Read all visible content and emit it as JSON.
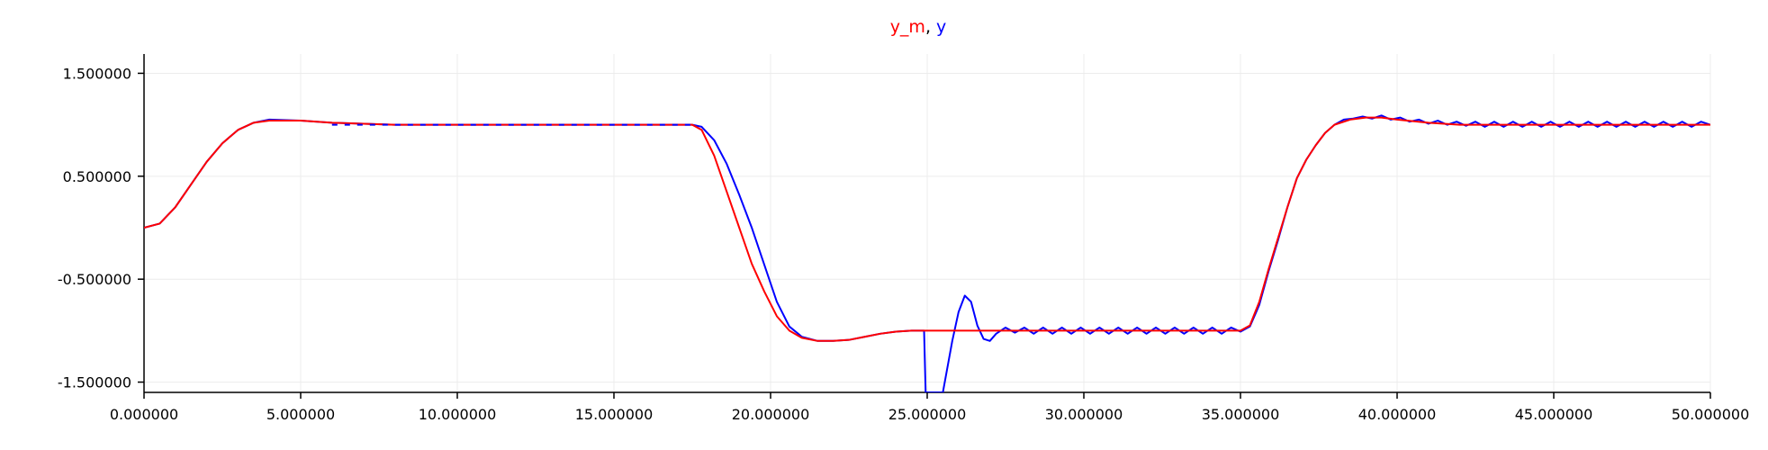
{
  "chart_data": {
    "type": "line",
    "title_parts": [
      {
        "text": "y_m",
        "color": "#ff0000"
      },
      {
        "text": ", ",
        "color": "#000000"
      },
      {
        "text": "y",
        "color": "#0000ff"
      }
    ],
    "xlim": [
      0,
      50
    ],
    "ylim": [
      -1.6,
      1.6
    ],
    "x_ticks": [
      0,
      5,
      10,
      15,
      20,
      25,
      30,
      35,
      40,
      45,
      50
    ],
    "x_tick_labels": [
      "0.000000",
      "5.000000",
      "10.000000",
      "15.000000",
      "20.000000",
      "25.000000",
      "30.000000",
      "35.000000",
      "40.000000",
      "45.000000",
      "50.000000"
    ],
    "y_ticks": [
      1.5,
      0.5,
      -0.5,
      -1.5
    ],
    "y_tick_labels": [
      "1.500000",
      "0.500000",
      "-0.500000",
      "-1.500000"
    ],
    "grid": true,
    "series": [
      {
        "name": "y",
        "color": "#0000ff",
        "points": [
          [
            0,
            0
          ],
          [
            0.5,
            0.04
          ],
          [
            1,
            0.2
          ],
          [
            1.5,
            0.42
          ],
          [
            2,
            0.64
          ],
          [
            2.5,
            0.82
          ],
          [
            3,
            0.95
          ],
          [
            3.5,
            1.02
          ],
          [
            4,
            1.05
          ],
          [
            5,
            1.04
          ],
          [
            6,
            1.02
          ],
          [
            8,
            1.0
          ],
          [
            10,
            1.0
          ],
          [
            12,
            1.0
          ],
          [
            15,
            1.0
          ],
          [
            17.5,
            1.0
          ],
          [
            17.8,
            0.98
          ],
          [
            18.2,
            0.85
          ],
          [
            18.6,
            0.62
          ],
          [
            19.0,
            0.32
          ],
          [
            19.4,
            0.0
          ],
          [
            19.8,
            -0.36
          ],
          [
            20.2,
            -0.72
          ],
          [
            20.6,
            -0.96
          ],
          [
            21.0,
            -1.06
          ],
          [
            21.5,
            -1.1
          ],
          [
            22,
            -1.1
          ],
          [
            22.5,
            -1.09
          ],
          [
            23,
            -1.06
          ],
          [
            23.5,
            -1.03
          ],
          [
            24,
            -1.01
          ],
          [
            24.5,
            -1.0
          ],
          [
            24.9,
            -1.0
          ],
          [
            24.95,
            -1.6
          ],
          [
            25.4,
            -1.6
          ],
          [
            25.5,
            -1.6
          ],
          [
            25.8,
            -1.1
          ],
          [
            26.0,
            -0.82
          ],
          [
            26.2,
            -0.66
          ],
          [
            26.4,
            -0.72
          ],
          [
            26.6,
            -0.95
          ],
          [
            26.8,
            -1.08
          ],
          [
            27.0,
            -1.1
          ],
          [
            27.2,
            -1.03
          ],
          [
            27.5,
            -0.97
          ],
          [
            27.8,
            -1.02
          ],
          [
            28.1,
            -0.97
          ],
          [
            28.4,
            -1.03
          ],
          [
            28.7,
            -0.97
          ],
          [
            29,
            -1.03
          ],
          [
            29.3,
            -0.97
          ],
          [
            29.6,
            -1.03
          ],
          [
            29.9,
            -0.97
          ],
          [
            30.2,
            -1.03
          ],
          [
            30.5,
            -0.97
          ],
          [
            30.8,
            -1.03
          ],
          [
            31.1,
            -0.97
          ],
          [
            31.4,
            -1.03
          ],
          [
            31.7,
            -0.97
          ],
          [
            32,
            -1.03
          ],
          [
            32.3,
            -0.97
          ],
          [
            32.6,
            -1.03
          ],
          [
            32.9,
            -0.97
          ],
          [
            33.2,
            -1.03
          ],
          [
            33.5,
            -0.97
          ],
          [
            33.8,
            -1.03
          ],
          [
            34.1,
            -0.97
          ],
          [
            34.4,
            -1.03
          ],
          [
            34.7,
            -0.97
          ],
          [
            35.0,
            -1.01
          ],
          [
            35.3,
            -0.96
          ],
          [
            35.6,
            -0.75
          ],
          [
            35.9,
            -0.42
          ],
          [
            36.2,
            -0.12
          ],
          [
            36.5,
            0.2
          ],
          [
            36.8,
            0.48
          ],
          [
            37.1,
            0.66
          ],
          [
            37.4,
            0.8
          ],
          [
            37.7,
            0.92
          ],
          [
            38.0,
            1.0
          ],
          [
            38.3,
            1.05
          ],
          [
            38.6,
            1.06
          ],
          [
            38.9,
            1.08
          ],
          [
            39.2,
            1.06
          ],
          [
            39.5,
            1.09
          ],
          [
            39.8,
            1.05
          ],
          [
            40.1,
            1.07
          ],
          [
            40.4,
            1.03
          ],
          [
            40.7,
            1.05
          ],
          [
            41.0,
            1.01
          ],
          [
            41.3,
            1.04
          ],
          [
            41.6,
            1.0
          ],
          [
            41.9,
            1.03
          ],
          [
            42.2,
            0.99
          ],
          [
            42.5,
            1.03
          ],
          [
            42.8,
            0.98
          ],
          [
            43.1,
            1.03
          ],
          [
            43.4,
            0.98
          ],
          [
            43.7,
            1.03
          ],
          [
            44.0,
            0.98
          ],
          [
            44.3,
            1.03
          ],
          [
            44.6,
            0.98
          ],
          [
            44.9,
            1.03
          ],
          [
            45.2,
            0.98
          ],
          [
            45.5,
            1.03
          ],
          [
            45.8,
            0.98
          ],
          [
            46.1,
            1.03
          ],
          [
            46.4,
            0.98
          ],
          [
            46.7,
            1.03
          ],
          [
            47.0,
            0.98
          ],
          [
            47.3,
            1.03
          ],
          [
            47.6,
            0.98
          ],
          [
            47.9,
            1.03
          ],
          [
            48.2,
            0.98
          ],
          [
            48.5,
            1.03
          ],
          [
            48.8,
            0.98
          ],
          [
            49.1,
            1.03
          ],
          [
            49.4,
            0.98
          ],
          [
            49.7,
            1.03
          ],
          [
            50,
            1.0
          ]
        ]
      },
      {
        "name": "y_m",
        "color": "#ff0000",
        "points": [
          [
            0,
            0
          ],
          [
            0.5,
            0.04
          ],
          [
            1,
            0.2
          ],
          [
            1.5,
            0.42
          ],
          [
            2,
            0.64
          ],
          [
            2.5,
            0.82
          ],
          [
            3,
            0.95
          ],
          [
            3.5,
            1.02
          ],
          [
            4,
            1.04
          ],
          [
            5,
            1.04
          ],
          [
            6,
            1.02
          ],
          [
            8,
            1.0
          ],
          [
            10,
            1.0
          ],
          [
            12,
            1.0
          ],
          [
            15,
            1.0
          ],
          [
            17.5,
            1.0
          ],
          [
            17.8,
            0.95
          ],
          [
            18.2,
            0.7
          ],
          [
            18.6,
            0.35
          ],
          [
            19.0,
            0.0
          ],
          [
            19.4,
            -0.35
          ],
          [
            19.8,
            -0.62
          ],
          [
            20.2,
            -0.86
          ],
          [
            20.6,
            -1.0
          ],
          [
            21.0,
            -1.07
          ],
          [
            21.5,
            -1.1
          ],
          [
            22,
            -1.1
          ],
          [
            22.5,
            -1.09
          ],
          [
            23,
            -1.06
          ],
          [
            23.5,
            -1.03
          ],
          [
            24,
            -1.01
          ],
          [
            24.5,
            -1.0
          ],
          [
            25,
            -1.0
          ],
          [
            26,
            -1.0
          ],
          [
            27,
            -1.0
          ],
          [
            28,
            -1.0
          ],
          [
            29,
            -1.0
          ],
          [
            30,
            -1.0
          ],
          [
            31,
            -1.0
          ],
          [
            32,
            -1.0
          ],
          [
            33,
            -1.0
          ],
          [
            34,
            -1.0
          ],
          [
            35.0,
            -1.0
          ],
          [
            35.3,
            -0.95
          ],
          [
            35.6,
            -0.72
          ],
          [
            35.9,
            -0.4
          ],
          [
            36.2,
            -0.1
          ],
          [
            36.5,
            0.2
          ],
          [
            36.8,
            0.48
          ],
          [
            37.1,
            0.66
          ],
          [
            37.4,
            0.8
          ],
          [
            37.7,
            0.92
          ],
          [
            38.0,
            1.0
          ],
          [
            38.5,
            1.05
          ],
          [
            39.0,
            1.07
          ],
          [
            39.5,
            1.07
          ],
          [
            40.0,
            1.05
          ],
          [
            41.0,
            1.02
          ],
          [
            42.0,
            1.0
          ],
          [
            43.0,
            1.0
          ],
          [
            45.0,
            1.0
          ],
          [
            47.0,
            1.0
          ],
          [
            50,
            1.0
          ]
        ]
      }
    ],
    "y_dashed_segment_blue_overlay_x": [
      6,
      17.5
    ]
  }
}
